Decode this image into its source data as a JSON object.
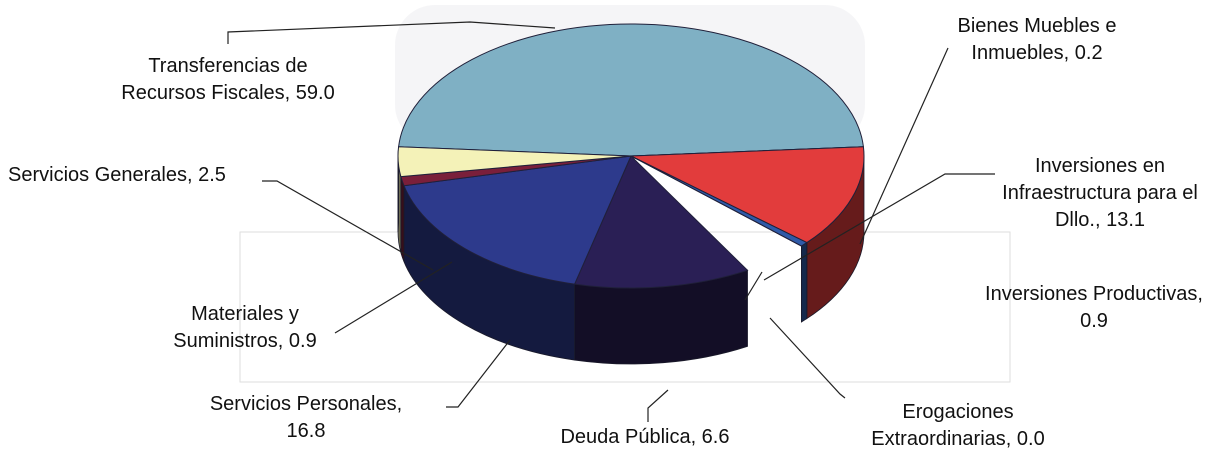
{
  "chart_data": {
    "type": "pie",
    "three_d": true,
    "title": "",
    "slices": [
      {
        "label_lines": [
          "Transferencias de",
          "Recursos Fiscales, 59.0"
        ],
        "category": "Transferencias de Recursos Fiscales",
        "value": 59.0,
        "color": "#7fb0c4"
      },
      {
        "label_lines": [
          "Bienes Muebles e",
          "Inmuebles, 0.2"
        ],
        "category": "Bienes Muebles e Inmuebles",
        "value": 0.2,
        "color": "#5b5f86"
      },
      {
        "label_lines": [
          "Inversiones en",
          "Infraestructura para el",
          "Dllo., 13.1"
        ],
        "category": "Inversiones en Infraestructura para el Dllo.",
        "value": 13.1,
        "color": "#e23c3c"
      },
      {
        "label_lines": [
          "Inversiones Productivas,",
          "0.9"
        ],
        "category": "Inversiones Productivas",
        "value": 0.9,
        "color": "#2f5aa8"
      },
      {
        "label_lines": [
          "Erogaciones",
          "Extraordinarias, 0.0"
        ],
        "category": "Erogaciones Extraordinarias",
        "value": 0.0,
        "color": "#7a86b8"
      },
      {
        "label_lines": [
          "Deuda Pública, 6.6"
        ],
        "category": "Deuda Pública",
        "value": 6.6,
        "color": "#2a1f55"
      },
      {
        "label_lines": [
          "Servicios Personales,",
          "16.8"
        ],
        "category": "Servicios Personales",
        "value": 16.8,
        "color": "#2d3a8c"
      },
      {
        "label_lines": [
          "Materiales y",
          "Suministros, 0.9"
        ],
        "category": "Materiales y Suministros",
        "value": 0.9,
        "color": "#7a1f3a"
      },
      {
        "label_lines": [
          "Servicios Generales, 2.5"
        ],
        "category": "Servicios Generales",
        "value": 2.5,
        "color": "#f4f2b8"
      }
    ]
  }
}
